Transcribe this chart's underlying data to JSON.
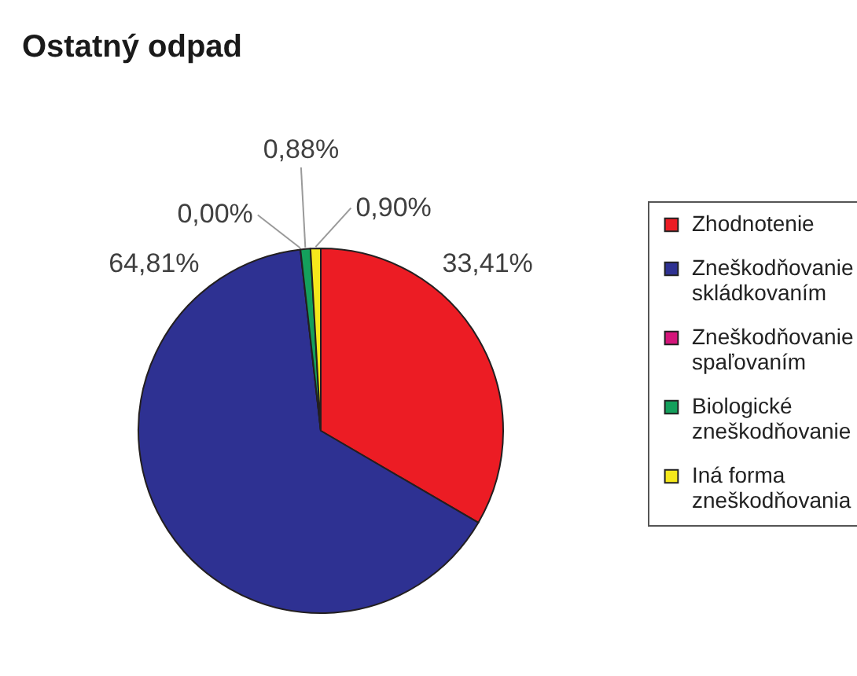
{
  "chart_data": {
    "type": "pie",
    "title": "Ostatný odpad",
    "categories": [
      "Zhodnotenie",
      "Zneškodňovanie skládkovaním",
      "Zneškodňovanie spaľovaním",
      "Biologické zneškodňovanie",
      "Iná forma zneškodňovania"
    ],
    "values": [
      33.41,
      64.81,
      0.0,
      0.88,
      0.9
    ],
    "colors": [
      "#ec1c24",
      "#2e3192",
      "#d4157a",
      "#14a05c",
      "#f5e81c"
    ],
    "value_labels": [
      "33,41%",
      "64,81%",
      "0,00%",
      "0,88%",
      "0,90%"
    ],
    "legend": "right"
  }
}
